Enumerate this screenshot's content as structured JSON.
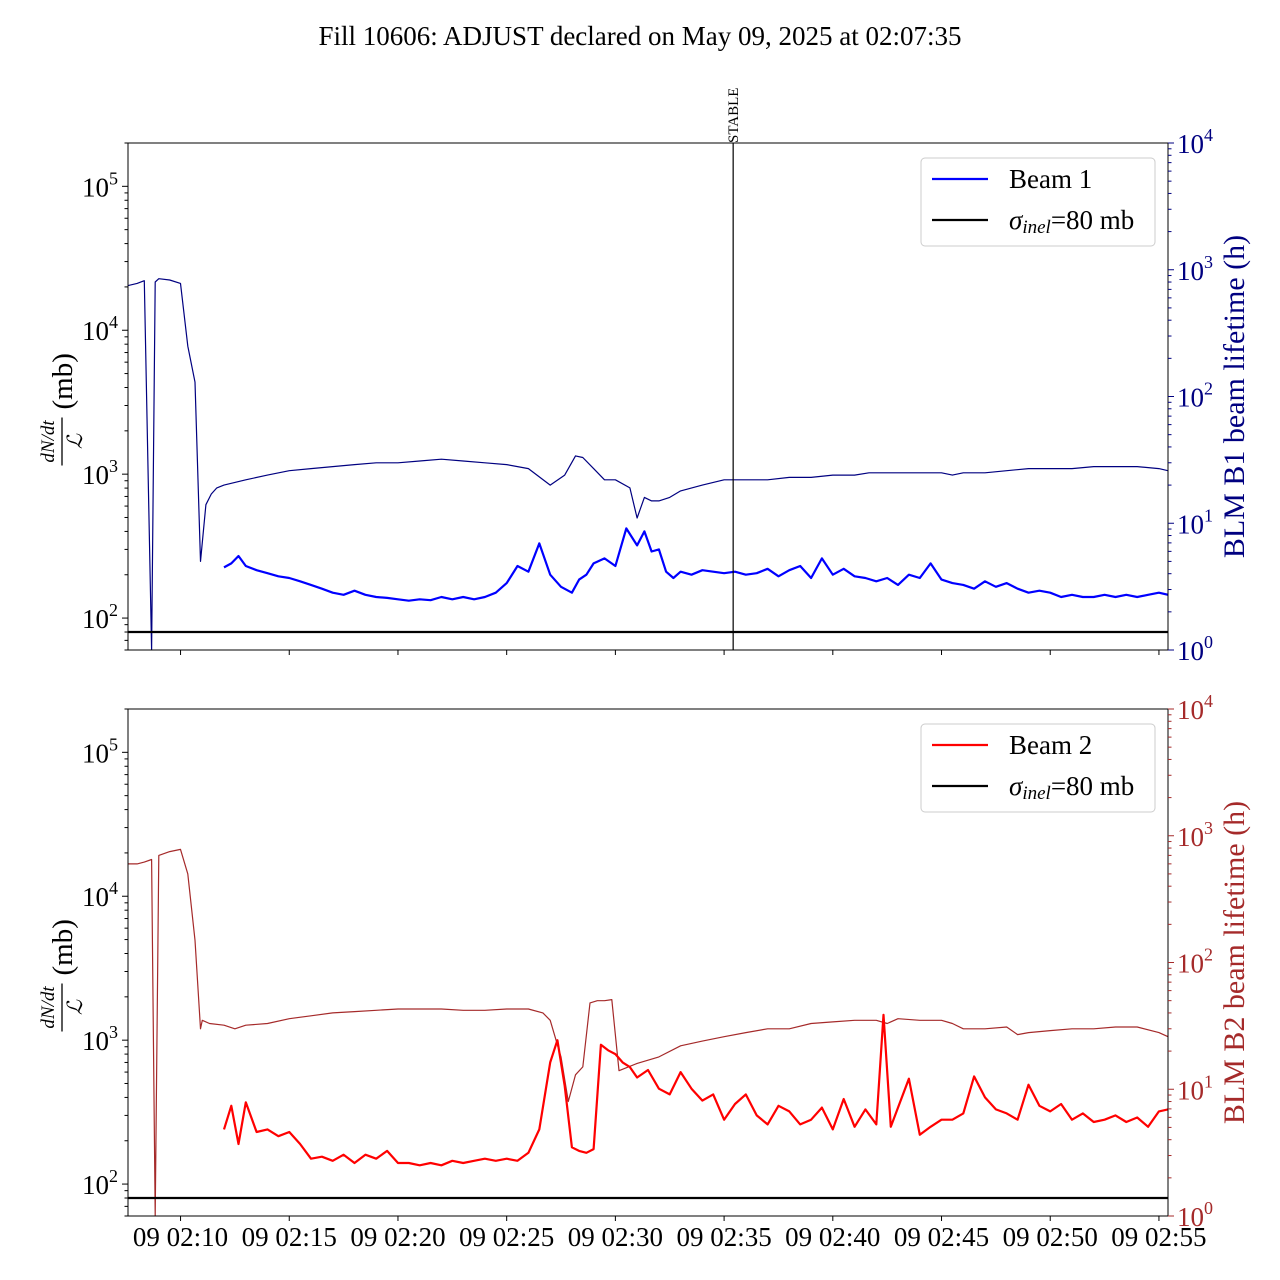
{
  "figure": {
    "title": "Fill 10606: ADJUST declared on May 09, 2025 at 02:07:35"
  },
  "colors": {
    "beam1_lifetime": "#000080",
    "beam1_dndt": "#0000ff",
    "beam2_lifetime": "#a52a2a",
    "beam2_dndt": "#ff0000",
    "reference": "#000000"
  },
  "chart_data": [
    {
      "type": "line",
      "title": "",
      "ylabel_left_math": "dN/dt",
      "ylabel_left_den": "ℒ",
      "ylabel_left_unit": "(mb)",
      "ylabel_right": "BLM B1 beam lifetime (h)",
      "y_left_scale": "log",
      "y_left_ylim": [
        60,
        200000
      ],
      "y_left_ticks": [
        100,
        1000,
        10000,
        100000
      ],
      "y_right_scale": "log",
      "y_right_ylim": [
        1,
        10000
      ],
      "y_right_ticks": [
        1,
        10,
        100,
        1000,
        10000
      ],
      "x_range": [
        "02:07:35",
        "02:55:25"
      ],
      "x_tick_labels": [],
      "annotation": {
        "label": "STABLE",
        "time": "02:35:25"
      },
      "legend": {
        "placement": "top-right",
        "entries": [
          {
            "label": "Beam 1",
            "series": "dndt"
          },
          {
            "label_main": "σ",
            "label_sub": "inel",
            "label_rest": "=80 mb",
            "series": "reference"
          }
        ]
      },
      "series": [
        {
          "key": "lifetime",
          "axis": "right",
          "t": [
            "02:07:35",
            "02:08:00",
            "02:08:20",
            "02:08:40",
            "02:08:50",
            "02:09:00",
            "02:09:30",
            "02:10:00",
            "02:10:20",
            "02:10:40",
            "02:10:55",
            "02:11:10",
            "02:11:25",
            "02:11:40",
            "02:12:00",
            "02:12:30",
            "02:13:00",
            "02:14:00",
            "02:15:00",
            "02:16:00",
            "02:17:00",
            "02:18:00",
            "02:19:00",
            "02:20:00",
            "02:21:00",
            "02:22:00",
            "02:23:00",
            "02:24:00",
            "02:25:00",
            "02:26:00",
            "02:27:00",
            "02:27:40",
            "02:28:10",
            "02:28:30",
            "02:29:00",
            "02:29:30",
            "02:30:00",
            "02:30:40",
            "02:31:00",
            "02:31:20",
            "02:31:40",
            "02:32:00",
            "02:32:30",
            "02:33:00",
            "02:34:00",
            "02:35:00",
            "02:36:00",
            "02:37:00",
            "02:38:00",
            "02:39:00",
            "02:40:00",
            "02:41:00",
            "02:41:40",
            "02:42:00",
            "02:42:30",
            "02:43:00",
            "02:44:00",
            "02:45:00",
            "02:45:30",
            "02:46:00",
            "02:47:00",
            "02:48:00",
            "02:49:00",
            "02:50:00",
            "02:51:00",
            "02:52:00",
            "02:53:00",
            "02:54:00",
            "02:55:00",
            "02:55:25"
          ],
          "values": [
            750,
            780,
            820,
            1,
            800,
            850,
            830,
            780,
            250,
            130,
            5,
            14,
            17,
            19,
            20,
            21,
            22,
            24,
            26,
            27,
            28,
            29,
            30,
            30,
            31,
            32,
            31,
            30,
            29,
            27,
            20,
            24,
            34,
            33,
            27,
            22,
            22,
            19,
            11,
            16,
            15,
            15,
            16,
            18,
            20,
            22,
            22,
            22,
            23,
            23,
            24,
            24,
            25,
            25,
            25,
            25,
            25,
            25,
            24,
            25,
            25,
            26,
            27,
            27,
            27,
            28,
            28,
            28,
            27,
            26
          ]
        },
        {
          "key": "dndt",
          "axis": "left",
          "t": [
            "02:12:00",
            "02:12:20",
            "02:12:40",
            "02:13:00",
            "02:13:30",
            "02:14:00",
            "02:14:30",
            "02:15:00",
            "02:15:30",
            "02:16:00",
            "02:16:30",
            "02:17:00",
            "02:17:30",
            "02:18:00",
            "02:18:30",
            "02:19:00",
            "02:19:30",
            "02:20:00",
            "02:20:30",
            "02:21:00",
            "02:21:30",
            "02:22:00",
            "02:22:30",
            "02:23:00",
            "02:23:30",
            "02:24:00",
            "02:24:30",
            "02:25:00",
            "02:25:30",
            "02:26:00",
            "02:26:30",
            "02:27:00",
            "02:27:30",
            "02:28:00",
            "02:28:20",
            "02:28:40",
            "02:29:00",
            "02:29:30",
            "02:30:00",
            "02:30:30",
            "02:31:00",
            "02:31:20",
            "02:31:40",
            "02:32:00",
            "02:32:20",
            "02:32:40",
            "02:33:00",
            "02:33:30",
            "02:34:00",
            "02:34:30",
            "02:35:00",
            "02:35:30",
            "02:36:00",
            "02:36:30",
            "02:37:00",
            "02:37:30",
            "02:38:00",
            "02:38:30",
            "02:39:00",
            "02:39:30",
            "02:40:00",
            "02:40:30",
            "02:41:00",
            "02:41:30",
            "02:42:00",
            "02:42:30",
            "02:43:00",
            "02:43:30",
            "02:44:00",
            "02:44:30",
            "02:45:00",
            "02:45:30",
            "02:46:00",
            "02:46:30",
            "02:47:00",
            "02:47:30",
            "02:48:00",
            "02:48:30",
            "02:49:00",
            "02:49:30",
            "02:50:00",
            "02:50:30",
            "02:51:00",
            "02:51:30",
            "02:52:00",
            "02:52:30",
            "02:53:00",
            "02:53:30",
            "02:54:00",
            "02:54:30",
            "02:55:00",
            "02:55:25"
          ],
          "values": [
            225,
            240,
            270,
            230,
            215,
            205,
            195,
            190,
            180,
            170,
            160,
            150,
            145,
            155,
            145,
            140,
            138,
            135,
            132,
            135,
            133,
            140,
            135,
            140,
            135,
            140,
            150,
            175,
            230,
            210,
            330,
            200,
            165,
            150,
            185,
            200,
            240,
            260,
            230,
            420,
            320,
            400,
            290,
            300,
            210,
            190,
            210,
            200,
            215,
            210,
            205,
            210,
            200,
            205,
            220,
            195,
            215,
            230,
            190,
            260,
            200,
            220,
            195,
            190,
            180,
            190,
            170,
            200,
            190,
            240,
            185,
            175,
            170,
            160,
            180,
            165,
            175,
            160,
            150,
            155,
            150,
            140,
            145,
            140,
            140,
            145,
            140,
            145,
            140,
            145,
            150,
            145
          ]
        },
        {
          "key": "reference",
          "axis": "left",
          "values": [
            80
          ]
        }
      ]
    },
    {
      "type": "line",
      "title": "",
      "ylabel_left_math": "dN/dt",
      "ylabel_left_den": "ℒ",
      "ylabel_left_unit": "(mb)",
      "ylabel_right": "BLM B2 beam lifetime (h)",
      "y_left_scale": "log",
      "y_left_ylim": [
        60,
        200000
      ],
      "y_left_ticks": [
        100,
        1000,
        10000,
        100000
      ],
      "y_right_scale": "log",
      "y_right_ylim": [
        1,
        10000
      ],
      "y_right_ticks": [
        1,
        10,
        100,
        1000,
        10000
      ],
      "x_range": [
        "02:07:35",
        "02:55:25"
      ],
      "x_tick_labels": [
        "09 02:10",
        "09 02:15",
        "09 02:20",
        "09 02:25",
        "09 02:30",
        "09 02:35",
        "09 02:40",
        "09 02:45",
        "09 02:50",
        "09 02:55"
      ],
      "x_tick_times": [
        "02:10:00",
        "02:15:00",
        "02:20:00",
        "02:25:00",
        "02:30:00",
        "02:35:00",
        "02:40:00",
        "02:45:00",
        "02:50:00",
        "02:55:00"
      ],
      "legend": {
        "placement": "top-right",
        "entries": [
          {
            "label": "Beam 2",
            "series": "dndt"
          },
          {
            "label_main": "σ",
            "label_sub": "inel",
            "label_rest": "=80 mb",
            "series": "reference"
          }
        ]
      },
      "series": [
        {
          "key": "lifetime",
          "axis": "right",
          "t": [
            "02:07:35",
            "02:08:00",
            "02:08:20",
            "02:08:40",
            "02:08:50",
            "02:09:00",
            "02:09:30",
            "02:10:00",
            "02:10:20",
            "02:10:40",
            "02:10:55",
            "02:11:00",
            "02:11:20",
            "02:12:00",
            "02:12:30",
            "02:13:00",
            "02:14:00",
            "02:15:00",
            "02:16:00",
            "02:17:00",
            "02:18:00",
            "02:19:00",
            "02:20:00",
            "02:21:00",
            "02:22:00",
            "02:23:00",
            "02:24:00",
            "02:25:00",
            "02:26:00",
            "02:26:40",
            "02:27:00",
            "02:27:30",
            "02:27:50",
            "02:28:10",
            "02:28:30",
            "02:28:50",
            "02:29:10",
            "02:29:30",
            "02:29:50",
            "02:30:10",
            "02:31:00",
            "02:32:00",
            "02:33:00",
            "02:34:00",
            "02:35:00",
            "02:36:00",
            "02:37:00",
            "02:38:00",
            "02:39:00",
            "02:40:00",
            "02:41:00",
            "02:42:00",
            "02:42:30",
            "02:43:00",
            "02:44:00",
            "02:45:00",
            "02:45:30",
            "02:46:00",
            "02:47:00",
            "02:48:00",
            "02:48:30",
            "02:49:00",
            "02:50:00",
            "02:51:00",
            "02:52:00",
            "02:53:00",
            "02:54:00",
            "02:55:00",
            "02:55:25"
          ],
          "values": [
            600,
            600,
            620,
            650,
            1,
            700,
            750,
            780,
            500,
            150,
            30,
            35,
            33,
            32,
            30,
            32,
            33,
            36,
            38,
            40,
            41,
            42,
            43,
            43,
            43,
            42,
            42,
            43,
            43,
            40,
            35,
            18,
            8,
            13,
            15,
            48,
            50,
            50,
            51,
            14,
            16,
            18,
            22,
            24,
            26,
            28,
            30,
            30,
            33,
            34,
            35,
            35,
            33,
            36,
            35,
            35,
            33,
            30,
            30,
            31,
            27,
            28,
            29,
            30,
            30,
            31,
            31,
            28,
            26
          ]
        },
        {
          "key": "dndt",
          "axis": "left",
          "t": [
            "02:12:00",
            "02:12:20",
            "02:12:40",
            "02:13:00",
            "02:13:30",
            "02:14:00",
            "02:14:30",
            "02:15:00",
            "02:15:30",
            "02:16:00",
            "02:16:30",
            "02:17:00",
            "02:17:30",
            "02:18:00",
            "02:18:30",
            "02:19:00",
            "02:19:30",
            "02:20:00",
            "02:20:30",
            "02:21:00",
            "02:21:30",
            "02:22:00",
            "02:22:30",
            "02:23:00",
            "02:23:30",
            "02:24:00",
            "02:24:30",
            "02:25:00",
            "02:25:30",
            "02:26:00",
            "02:26:30",
            "02:27:00",
            "02:27:20",
            "02:27:40",
            "02:28:00",
            "02:28:20",
            "02:28:40",
            "02:29:00",
            "02:29:20",
            "02:29:40",
            "02:30:00",
            "02:30:20",
            "02:30:40",
            "02:31:00",
            "02:31:30",
            "02:32:00",
            "02:32:30",
            "02:33:00",
            "02:33:30",
            "02:34:00",
            "02:34:30",
            "02:35:00",
            "02:35:30",
            "02:36:00",
            "02:36:30",
            "02:37:00",
            "02:37:30",
            "02:38:00",
            "02:38:30",
            "02:39:00",
            "02:39:30",
            "02:40:00",
            "02:40:30",
            "02:41:00",
            "02:41:30",
            "02:42:00",
            "02:42:20",
            "02:42:40",
            "02:43:00",
            "02:43:30",
            "02:44:00",
            "02:44:30",
            "02:45:00",
            "02:45:30",
            "02:46:00",
            "02:46:30",
            "02:47:00",
            "02:47:30",
            "02:48:00",
            "02:48:30",
            "02:49:00",
            "02:49:30",
            "02:50:00",
            "02:50:30",
            "02:51:00",
            "02:51:30",
            "02:52:00",
            "02:52:30",
            "02:53:00",
            "02:53:30",
            "02:54:00",
            "02:54:30",
            "02:55:00",
            "02:55:25"
          ],
          "values": [
            240,
            350,
            190,
            370,
            230,
            240,
            215,
            230,
            190,
            150,
            155,
            145,
            160,
            140,
            160,
            150,
            170,
            140,
            140,
            135,
            140,
            135,
            145,
            140,
            145,
            150,
            145,
            150,
            145,
            165,
            240,
            700,
            1000,
            480,
            180,
            170,
            165,
            175,
            930,
            850,
            800,
            700,
            650,
            550,
            620,
            460,
            420,
            600,
            460,
            380,
            420,
            280,
            360,
            420,
            300,
            260,
            350,
            320,
            260,
            280,
            340,
            240,
            390,
            250,
            330,
            260,
            1500,
            250,
            340,
            540,
            220,
            250,
            280,
            280,
            310,
            560,
            400,
            330,
            310,
            280,
            490,
            350,
            320,
            360,
            280,
            310,
            270,
            280,
            300,
            270,
            290,
            250,
            320,
            330
          ]
        },
        {
          "key": "reference",
          "axis": "left",
          "values": [
            80
          ]
        }
      ]
    }
  ]
}
